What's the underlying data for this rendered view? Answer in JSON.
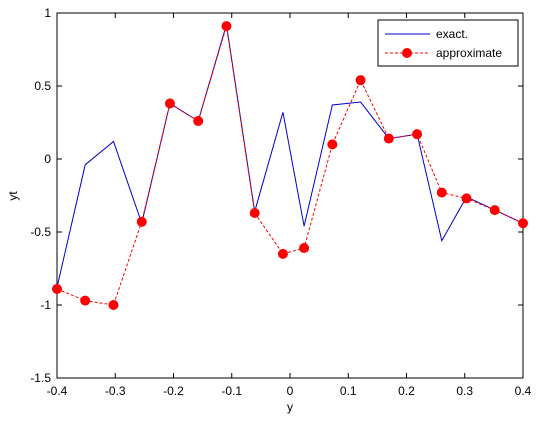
{
  "chart_data": {
    "type": "line",
    "title": "",
    "xlabel": "y",
    "ylabel": "yt",
    "xlim": [
      -0.4,
      0.4
    ],
    "ylim": [
      -1.5,
      1
    ],
    "xticks": [
      -0.4,
      -0.3,
      -0.2,
      -0.1,
      0,
      0.1,
      0.2,
      0.3,
      0.4
    ],
    "xtick_labels": [
      "-0.4",
      "-0.3",
      "-0.2",
      "-0.1",
      "0",
      "0.1",
      "0.2",
      "0.3",
      "0.4"
    ],
    "yticks": [
      -1.5,
      -1,
      -0.5,
      0,
      0.5,
      1
    ],
    "ytick_labels": [
      "-1.5",
      "-1",
      "-0.5",
      "0",
      "0.5",
      "1"
    ],
    "grid": false,
    "legend_position": "top-right",
    "series": [
      {
        "name": "exact.",
        "color": "#0000cc",
        "line_style": "solid",
        "marker": "none",
        "x": [
          -0.4,
          -0.3516,
          -0.303,
          -0.2545,
          -0.2061,
          -0.1576,
          -0.1091,
          -0.0606,
          -0.0121,
          0.0242,
          0.0727,
          0.1212,
          0.1697,
          0.2182,
          0.2606,
          0.303,
          0.3515,
          0.4
        ],
        "y": [
          -0.88,
          -0.04,
          0.12,
          -0.44,
          0.38,
          0.26,
          0.92,
          -0.36,
          0.32,
          -0.46,
          0.37,
          0.39,
          0.14,
          0.17,
          -0.56,
          -0.26,
          -0.35,
          -0.44
        ]
      },
      {
        "name": "approximate",
        "color": "#ff0000",
        "line_style": "dashed",
        "marker": "circle",
        "x": [
          -0.4,
          -0.3516,
          -0.303,
          -0.2545,
          -0.2061,
          -0.1576,
          -0.1091,
          -0.0606,
          -0.0121,
          0.0242,
          0.0727,
          0.1212,
          0.1697,
          0.2182,
          0.2606,
          0.303,
          0.3515,
          0.4
        ],
        "y": [
          -0.89,
          -0.97,
          -1.0,
          -0.43,
          0.38,
          0.26,
          0.91,
          -0.37,
          -0.65,
          -0.61,
          0.1,
          0.54,
          0.14,
          0.17,
          -0.23,
          -0.27,
          -0.35,
          -0.44
        ]
      }
    ]
  }
}
